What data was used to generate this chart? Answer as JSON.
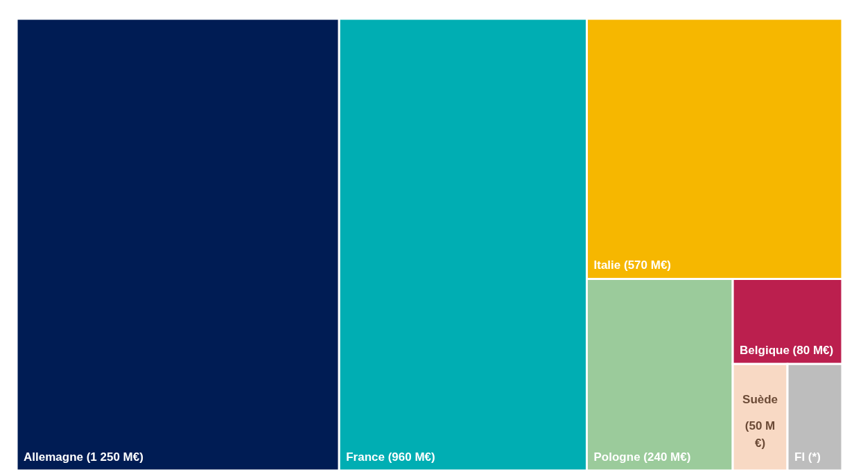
{
  "chart_data": {
    "type": "other",
    "categories": [
      "Allemagne",
      "France",
      "Italie",
      "Pologne",
      "Belgique",
      "Suède",
      "FI"
    ],
    "values": [
      1250,
      960,
      570,
      240,
      80,
      50,
      null
    ],
    "value_labels": [
      "(1 250 M€)",
      "(960 M€)",
      "(570 M€)",
      "(240 M€)",
      "(80 M€)",
      "(50 M €)",
      "(*)"
    ],
    "colors": [
      "#001c54",
      "#00aeb3",
      "#f6b700",
      "#9bcb9b",
      "#bb1f4e",
      "#f8d9c4",
      "#bdbdbd"
    ]
  }
}
